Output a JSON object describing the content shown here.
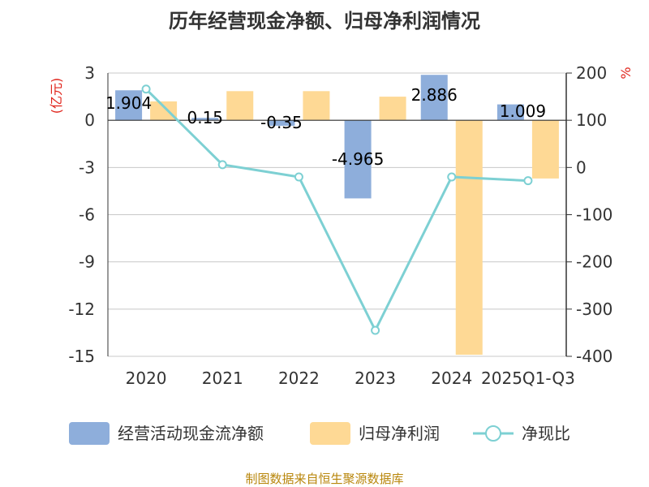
{
  "chart_data": {
    "type": "bar",
    "title": "历年经营现金净额、归母净利润情况",
    "categories": [
      "2020",
      "2021",
      "2022",
      "2023",
      "2024",
      "2025Q1-Q3"
    ],
    "left_axis": {
      "unit": "(亿元)",
      "ylim": [
        -15,
        3
      ],
      "ticks": [
        "3",
        "0",
        "-3",
        "-6",
        "-9",
        "-12",
        "-15"
      ]
    },
    "right_axis": {
      "unit": "%",
      "ylim": [
        -400,
        200
      ],
      "ticks": [
        "200",
        "100",
        "0",
        "-100",
        "-200",
        "-300",
        "-400"
      ]
    },
    "series": [
      {
        "name": "经营活动现金流净额",
        "type": "bar",
        "axis": "left",
        "color": "#8eaedb",
        "values": [
          1.904,
          0.15,
          -0.35,
          -4.965,
          2.886,
          1.009
        ],
        "labels": [
          "1.904",
          "0.15",
          "-0.35",
          "-4.965",
          "2.886",
          "1.009"
        ]
      },
      {
        "name": "归母净利润",
        "type": "bar",
        "axis": "left",
        "color": "#fed995",
        "values": [
          1.2,
          1.85,
          1.85,
          1.5,
          -14.9,
          -3.7
        ]
      },
      {
        "name": "净现比",
        "type": "line",
        "axis": "right",
        "color": "#7dd0d3",
        "values": [
          166,
          6,
          -20,
          -345,
          -20,
          -28
        ]
      }
    ],
    "legend_position": "bottom",
    "grid": true
  },
  "source": "制图数据来自恒生聚源数据库"
}
